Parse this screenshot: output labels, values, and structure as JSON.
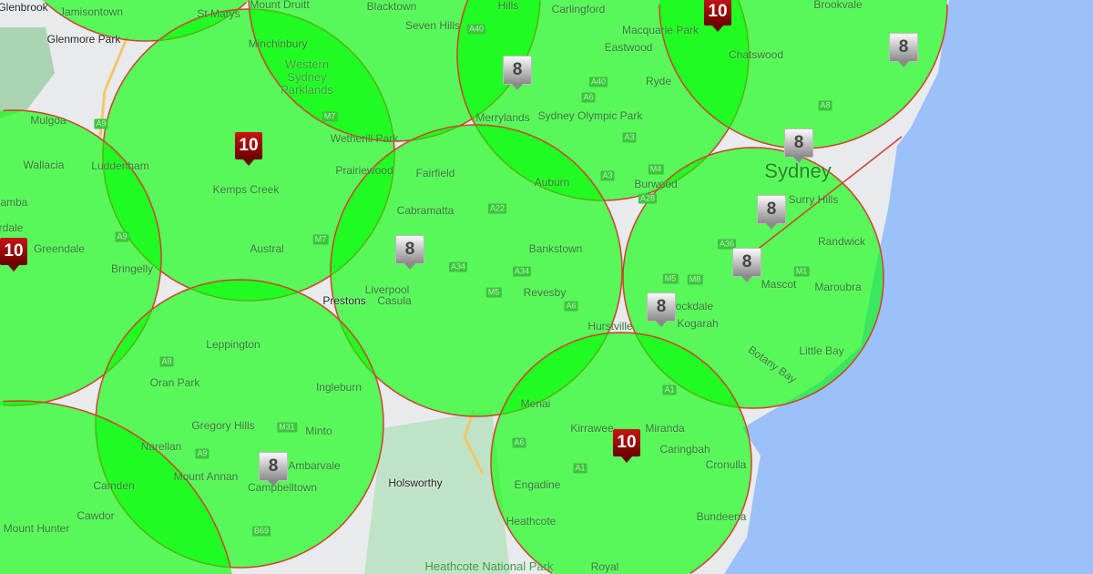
{
  "colors": {
    "coverage_fill": "#00ff00",
    "coverage_stroke": "#d0402a",
    "ocean": "#9cc0f9",
    "land": "#e8eaed",
    "marker_8": "#9a9a9a",
    "marker_10": "#8b0000"
  },
  "labels": [
    "Glenbrook",
    "Jamisontown",
    "St Marys",
    "Mount Druitt",
    "Blacktown",
    "Seven Hills",
    "Hills",
    "Carlingford",
    "Brookvale",
    "Glenmore Park",
    "Minchinbury",
    "Western Sydney Parklands",
    "Eastwood",
    "Macquarie Park",
    "Chatswood",
    "Ryde",
    "Sydney Olympic Park",
    "Mulgoa",
    "Merrylands",
    "Wetherill Park",
    "Wallacia",
    "Luddenham",
    "Kemps Creek",
    "Prairiewood",
    "Fairfield",
    "Auburn",
    "Burwood",
    "Sydney",
    "Surry Hills",
    "Cabramatta",
    "Bankstown",
    "Randwick",
    "gamba",
    "rdale",
    "Greendale",
    "Austral",
    "Bringelly",
    "Liverpool",
    "Mascot",
    "Prestons",
    "Casula",
    "Revesby",
    "Rockdale",
    "Maroubra",
    "Hurstville",
    "Kogarah",
    "Leppington",
    "Oran Park",
    "Ingleburn",
    "Botany Bay",
    "Little Bay",
    "Gregory Hills",
    "Minto",
    "Menai",
    "Narellan",
    "Mount Annan",
    "Ambarvale",
    "Campbelltown",
    "Miranda",
    "Kirrawee",
    "Caringbah",
    "Cronulla",
    "Camden",
    "Holsworthy",
    "Engadine",
    "Cawdor",
    "Mount Hunter",
    "Heathcote",
    "Bundeena",
    "Heathcote National Park",
    "Royal"
  ],
  "road_shields": [
    "A9",
    "A9",
    "A9",
    "M7",
    "M7",
    "A40",
    "A40",
    "A6",
    "M4",
    "A3",
    "A3",
    "A22",
    "A34",
    "A34",
    "M5",
    "A6",
    "A28",
    "A36",
    "M5",
    "M8",
    "M1",
    "A8",
    "A1",
    "A1",
    "A6",
    "M31",
    "A9",
    "B69"
  ],
  "markers": [
    {
      "value": "8",
      "level": 8
    },
    {
      "value": "8",
      "level": 8
    },
    {
      "value": "8",
      "level": 8
    },
    {
      "value": "8",
      "level": 8
    },
    {
      "value": "8",
      "level": 8
    },
    {
      "value": "8",
      "level": 8
    },
    {
      "value": "8",
      "level": 8
    },
    {
      "value": "8",
      "level": 8
    },
    {
      "value": "10",
      "level": 10
    },
    {
      "value": "10",
      "level": 10
    },
    {
      "value": "10",
      "level": 10
    },
    {
      "value": "10",
      "level": 10
    }
  ]
}
